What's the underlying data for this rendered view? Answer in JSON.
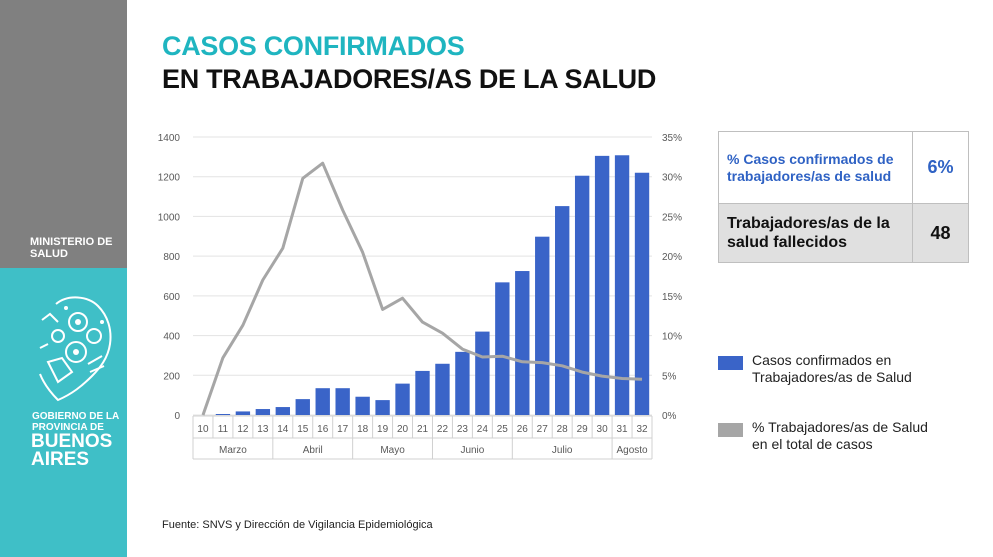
{
  "sidebar": {
    "ministry": "MINISTERIO DE\nSALUD",
    "government": "GOBIERNO DE LA\nPROVINCIA DE",
    "province": "BUENOS\nAIRES",
    "colors": {
      "top": "#808080",
      "bottom": "#3fbfc7"
    },
    "emblem_icon": "provincial-emblem-icon"
  },
  "header": {
    "title_line1": "CASOS CONFIRMADOS",
    "title_line2": "EN TRABAJADORES/AS DE LA SALUD"
  },
  "stats": {
    "rows": [
      {
        "label": "% Casos confirmados de trabajadores/as de salud",
        "value": "6%"
      },
      {
        "label": "Trabajadores/as de la salud fallecidos",
        "value": "48"
      }
    ]
  },
  "chart_data": {
    "type": "bar",
    "categories": [
      "10",
      "11",
      "12",
      "13",
      "14",
      "15",
      "16",
      "17",
      "18",
      "19",
      "20",
      "21",
      "22",
      "23",
      "24",
      "25",
      "26",
      "27",
      "28",
      "29",
      "30",
      "31",
      "32"
    ],
    "month_groups": [
      {
        "label": "Marzo",
        "from": 0,
        "to": 3
      },
      {
        "label": "Abril",
        "from": 4,
        "to": 7
      },
      {
        "label": "Mayo",
        "from": 8,
        "to": 11
      },
      {
        "label": "Junio",
        "from": 12,
        "to": 15
      },
      {
        "label": "Julio",
        "from": 16,
        "to": 20
      },
      {
        "label": "Agosto",
        "from": 21,
        "to": 22
      }
    ],
    "series": [
      {
        "name": "Casos confirmados en Trabajadores/as de Salud",
        "type": "bar",
        "axis": "left",
        "color": "#3a64c8",
        "values": [
          0,
          5,
          18,
          30,
          40,
          80,
          135,
          135,
          92,
          75,
          158,
          222,
          258,
          318,
          420,
          668,
          725,
          898,
          1052,
          1205,
          1305,
          1308,
          1220
        ]
      },
      {
        "name": "% Trabajadores/as de Salud en el total de casos",
        "type": "line",
        "axis": "right",
        "color": "#a6a6a6",
        "values": [
          0,
          7.2,
          11.3,
          17.0,
          21.0,
          29.8,
          31.7,
          25.8,
          20.5,
          13.3,
          14.7,
          11.7,
          10.3,
          8.3,
          7.3,
          7.4,
          6.7,
          6.6,
          6.2,
          5.4,
          4.9,
          4.6,
          4.5
        ]
      }
    ],
    "left_axis": {
      "min": 0,
      "max": 1400,
      "ticks": [
        0,
        200,
        400,
        600,
        800,
        1000,
        1200,
        1400
      ]
    },
    "right_axis": {
      "min": 0,
      "max": 35,
      "ticks": [
        "0%",
        "5%",
        "10%",
        "15%",
        "20%",
        "25%",
        "30%",
        "35%"
      ]
    },
    "grid": true,
    "legend_placement": "right",
    "title": "",
    "xlabel": "",
    "ylabel": ""
  },
  "source": "Fuente: SNVS y Dirección de Vigilancia Epidemiológica"
}
